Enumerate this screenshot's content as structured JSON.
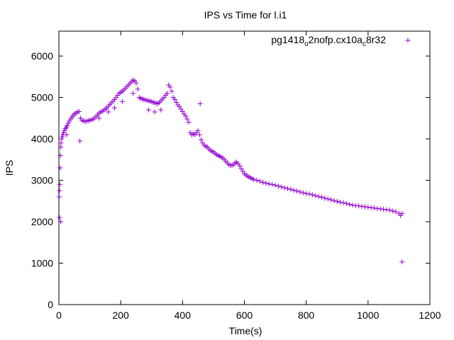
{
  "chart_data": {
    "type": "scatter",
    "title": "IPS vs Time for l.i1",
    "xlabel": "Time(s)",
    "ylabel": "IPS",
    "xlim": [
      0,
      1200
    ],
    "ylim": [
      0,
      6600
    ],
    "xticks": [
      0,
      200,
      400,
      600,
      800,
      1000,
      1200
    ],
    "yticks": [
      0,
      1000,
      2000,
      3000,
      4000,
      5000,
      6000
    ],
    "grid": false,
    "legend_position": "top-right",
    "series": [
      {
        "name": "pg1418",
        "name_sub1": "o",
        "name_mid": "2nofp.cx10a",
        "name_sub2": "c",
        "name_end": "8r32",
        "color": "#9400d3",
        "marker": "plus",
        "points": [
          [
            1,
            2600
          ],
          [
            2,
            2750
          ],
          [
            3,
            2900
          ],
          [
            4,
            3300
          ],
          [
            5,
            3600
          ],
          [
            6,
            3800
          ],
          [
            7,
            3900
          ],
          [
            9,
            4000
          ],
          [
            11,
            4050
          ],
          [
            13,
            4100
          ],
          [
            15,
            4150
          ],
          [
            18,
            4200
          ],
          [
            21,
            4250
          ],
          [
            24,
            4280
          ],
          [
            27,
            4320
          ],
          [
            30,
            4380
          ],
          [
            34,
            4430
          ],
          [
            38,
            4480
          ],
          [
            42,
            4520
          ],
          [
            46,
            4560
          ],
          [
            50,
            4600
          ],
          [
            55,
            4620
          ],
          [
            60,
            4650
          ],
          [
            65,
            4660
          ],
          [
            70,
            4500
          ],
          [
            75,
            4450
          ],
          [
            80,
            4430
          ],
          [
            85,
            4420
          ],
          [
            90,
            4430
          ],
          [
            95,
            4440
          ],
          [
            100,
            4450
          ],
          [
            105,
            4460
          ],
          [
            110,
            4470
          ],
          [
            115,
            4500
          ],
          [
            120,
            4540
          ],
          [
            125,
            4580
          ],
          [
            130,
            4620
          ],
          [
            135,
            4650
          ],
          [
            140,
            4660
          ],
          [
            145,
            4690
          ],
          [
            150,
            4720
          ],
          [
            155,
            4750
          ],
          [
            160,
            4790
          ],
          [
            165,
            4830
          ],
          [
            170,
            4870
          ],
          [
            175,
            4910
          ],
          [
            180,
            4950
          ],
          [
            185,
            5000
          ],
          [
            190,
            5050
          ],
          [
            195,
            5100
          ],
          [
            200,
            5120
          ],
          [
            205,
            5150
          ],
          [
            210,
            5180
          ],
          [
            215,
            5220
          ],
          [
            220,
            5260
          ],
          [
            225,
            5300
          ],
          [
            230,
            5340
          ],
          [
            235,
            5380
          ],
          [
            240,
            5420
          ],
          [
            245,
            5400
          ],
          [
            250,
            5350
          ],
          [
            255,
            5200
          ],
          [
            260,
            5000
          ],
          [
            265,
            4980
          ],
          [
            270,
            4960
          ],
          [
            275,
            4950
          ],
          [
            280,
            4940
          ],
          [
            285,
            4930
          ],
          [
            290,
            4920
          ],
          [
            295,
            4910
          ],
          [
            300,
            4900
          ],
          [
            305,
            4880
          ],
          [
            310,
            4870
          ],
          [
            315,
            4860
          ],
          [
            320,
            4850
          ],
          [
            325,
            4880
          ],
          [
            330,
            4920
          ],
          [
            335,
            4960
          ],
          [
            340,
            5000
          ],
          [
            345,
            5050
          ],
          [
            350,
            5100
          ],
          [
            355,
            5300
          ],
          [
            360,
            5250
          ],
          [
            365,
            5150
          ],
          [
            370,
            5000
          ],
          [
            375,
            4950
          ],
          [
            380,
            4880
          ],
          [
            385,
            4820
          ],
          [
            390,
            4780
          ],
          [
            395,
            4720
          ],
          [
            400,
            4660
          ],
          [
            405,
            4600
          ],
          [
            410,
            4550
          ],
          [
            415,
            4480
          ],
          [
            420,
            4400
          ],
          [
            425,
            4150
          ],
          [
            430,
            4100
          ],
          [
            435,
            4120
          ],
          [
            440,
            4100
          ],
          [
            445,
            4150
          ],
          [
            450,
            4200
          ],
          [
            455,
            4100
          ],
          [
            460,
            3980
          ],
          [
            465,
            3900
          ],
          [
            470,
            3850
          ],
          [
            475,
            3820
          ],
          [
            480,
            3800
          ],
          [
            485,
            3760
          ],
          [
            490,
            3720
          ],
          [
            495,
            3700
          ],
          [
            500,
            3680
          ],
          [
            505,
            3650
          ],
          [
            510,
            3620
          ],
          [
            515,
            3600
          ],
          [
            520,
            3580
          ],
          [
            525,
            3560
          ],
          [
            530,
            3540
          ],
          [
            535,
            3500
          ],
          [
            540,
            3460
          ],
          [
            545,
            3420
          ],
          [
            550,
            3380
          ],
          [
            555,
            3360
          ],
          [
            560,
            3360
          ],
          [
            565,
            3380
          ],
          [
            570,
            3420
          ],
          [
            575,
            3440
          ],
          [
            580,
            3400
          ],
          [
            585,
            3350
          ],
          [
            590,
            3280
          ],
          [
            595,
            3220
          ],
          [
            600,
            3160
          ],
          [
            605,
            3130
          ],
          [
            610,
            3100
          ],
          [
            615,
            3080
          ],
          [
            620,
            3060
          ],
          [
            625,
            3040
          ],
          [
            630,
            3020
          ],
          [
            640,
            3000
          ],
          [
            650,
            2980
          ],
          [
            660,
            2950
          ],
          [
            670,
            2930
          ],
          [
            680,
            2910
          ],
          [
            690,
            2900
          ],
          [
            700,
            2880
          ],
          [
            710,
            2860
          ],
          [
            720,
            2840
          ],
          [
            730,
            2820
          ],
          [
            740,
            2800
          ],
          [
            750,
            2780
          ],
          [
            760,
            2760
          ],
          [
            770,
            2740
          ],
          [
            780,
            2720
          ],
          [
            790,
            2700
          ],
          [
            800,
            2680
          ],
          [
            810,
            2670
          ],
          [
            820,
            2650
          ],
          [
            830,
            2630
          ],
          [
            840,
            2610
          ],
          [
            850,
            2590
          ],
          [
            860,
            2570
          ],
          [
            870,
            2550
          ],
          [
            880,
            2530
          ],
          [
            890,
            2510
          ],
          [
            900,
            2490
          ],
          [
            910,
            2470
          ],
          [
            920,
            2460
          ],
          [
            930,
            2440
          ],
          [
            940,
            2420
          ],
          [
            950,
            2400
          ],
          [
            960,
            2390
          ],
          [
            970,
            2380
          ],
          [
            980,
            2370
          ],
          [
            990,
            2360
          ],
          [
            1000,
            2350
          ],
          [
            1010,
            2340
          ],
          [
            1020,
            2330
          ],
          [
            1030,
            2320
          ],
          [
            1040,
            2310
          ],
          [
            1050,
            2300
          ],
          [
            1060,
            2290
          ],
          [
            1070,
            2280
          ],
          [
            1080,
            2260
          ],
          [
            1090,
            2240
          ],
          [
            1100,
            2200
          ],
          [
            1105,
            2150
          ],
          [
            1110,
            2200
          ],
          [
            1110,
            1030
          ],
          [
            457,
            4850
          ],
          [
            68,
            3950
          ],
          [
            25,
            4100
          ],
          [
            6,
            2000
          ],
          [
            2,
            2100
          ],
          [
            290,
            4700
          ],
          [
            310,
            4650
          ],
          [
            330,
            4700
          ],
          [
            205,
            4900
          ],
          [
            180,
            4750
          ],
          [
            130,
            4500
          ],
          [
            160,
            4650
          ],
          [
            240,
            5100
          ]
        ]
      }
    ]
  }
}
